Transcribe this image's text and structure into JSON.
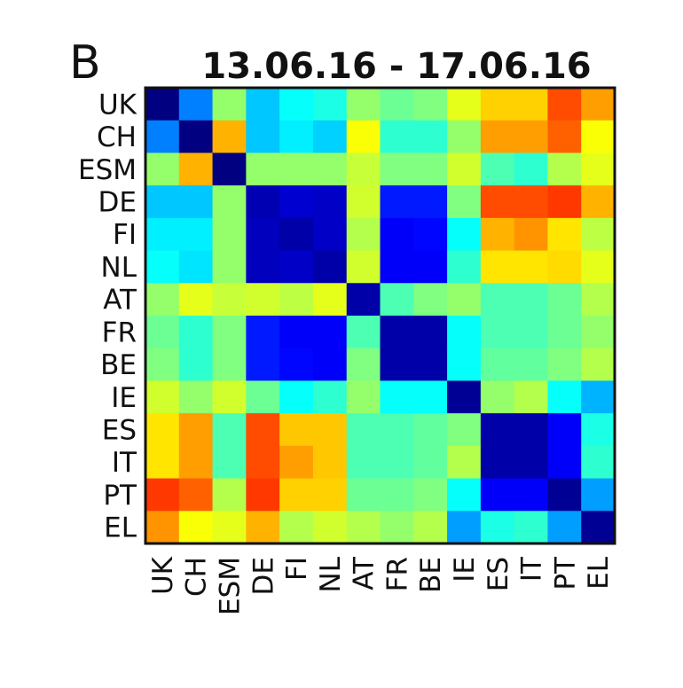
{
  "panel_label": "B",
  "chart_data": {
    "type": "heatmap",
    "title": "13.06.16 - 17.06.16",
    "categories": [
      "UK",
      "CH",
      "ESM",
      "DE",
      "FI",
      "NL",
      "AT",
      "FR",
      "BE",
      "IE",
      "ES",
      "IT",
      "PT",
      "EL"
    ],
    "colormap": "jet",
    "vlim": [
      0,
      1
    ],
    "grid": false,
    "legend": "none",
    "values": [
      [
        0.0,
        0.25,
        0.52,
        0.32,
        0.38,
        0.4,
        0.52,
        0.48,
        0.5,
        0.6,
        0.67,
        0.67,
        0.8,
        0.72
      ],
      [
        0.25,
        0.0,
        0.7,
        0.32,
        0.36,
        0.33,
        0.62,
        0.42,
        0.42,
        0.52,
        0.72,
        0.72,
        0.78,
        0.62
      ],
      [
        0.52,
        0.7,
        0.0,
        0.52,
        0.52,
        0.52,
        0.57,
        0.5,
        0.5,
        0.58,
        0.45,
        0.42,
        0.55,
        0.6
      ],
      [
        0.32,
        0.32,
        0.52,
        0.05,
        0.08,
        0.07,
        0.58,
        0.15,
        0.15,
        0.5,
        0.8,
        0.8,
        0.82,
        0.7
      ],
      [
        0.36,
        0.36,
        0.52,
        0.06,
        0.04,
        0.07,
        0.55,
        0.12,
        0.13,
        0.38,
        0.7,
        0.73,
        0.65,
        0.56
      ],
      [
        0.38,
        0.35,
        0.52,
        0.06,
        0.07,
        0.04,
        0.58,
        0.12,
        0.12,
        0.42,
        0.65,
        0.65,
        0.66,
        0.6
      ],
      [
        0.52,
        0.6,
        0.57,
        0.58,
        0.56,
        0.6,
        0.04,
        0.45,
        0.5,
        0.52,
        0.45,
        0.45,
        0.48,
        0.55
      ],
      [
        0.48,
        0.42,
        0.5,
        0.15,
        0.12,
        0.12,
        0.45,
        0.04,
        0.04,
        0.38,
        0.45,
        0.45,
        0.48,
        0.52
      ],
      [
        0.5,
        0.42,
        0.5,
        0.15,
        0.13,
        0.12,
        0.5,
        0.04,
        0.04,
        0.38,
        0.47,
        0.47,
        0.5,
        0.55
      ],
      [
        0.58,
        0.52,
        0.58,
        0.48,
        0.38,
        0.42,
        0.52,
        0.38,
        0.38,
        0.02,
        0.52,
        0.55,
        0.38,
        0.3
      ],
      [
        0.65,
        0.72,
        0.45,
        0.8,
        0.68,
        0.68,
        0.45,
        0.45,
        0.47,
        0.5,
        0.04,
        0.04,
        0.12,
        0.4
      ],
      [
        0.65,
        0.72,
        0.45,
        0.8,
        0.72,
        0.68,
        0.45,
        0.45,
        0.47,
        0.55,
        0.04,
        0.04,
        0.12,
        0.42
      ],
      [
        0.82,
        0.78,
        0.55,
        0.82,
        0.67,
        0.67,
        0.48,
        0.48,
        0.5,
        0.38,
        0.12,
        0.12,
        0.02,
        0.28
      ],
      [
        0.73,
        0.62,
        0.6,
        0.7,
        0.55,
        0.58,
        0.55,
        0.52,
        0.55,
        0.28,
        0.4,
        0.42,
        0.28,
        0.02
      ]
    ]
  }
}
